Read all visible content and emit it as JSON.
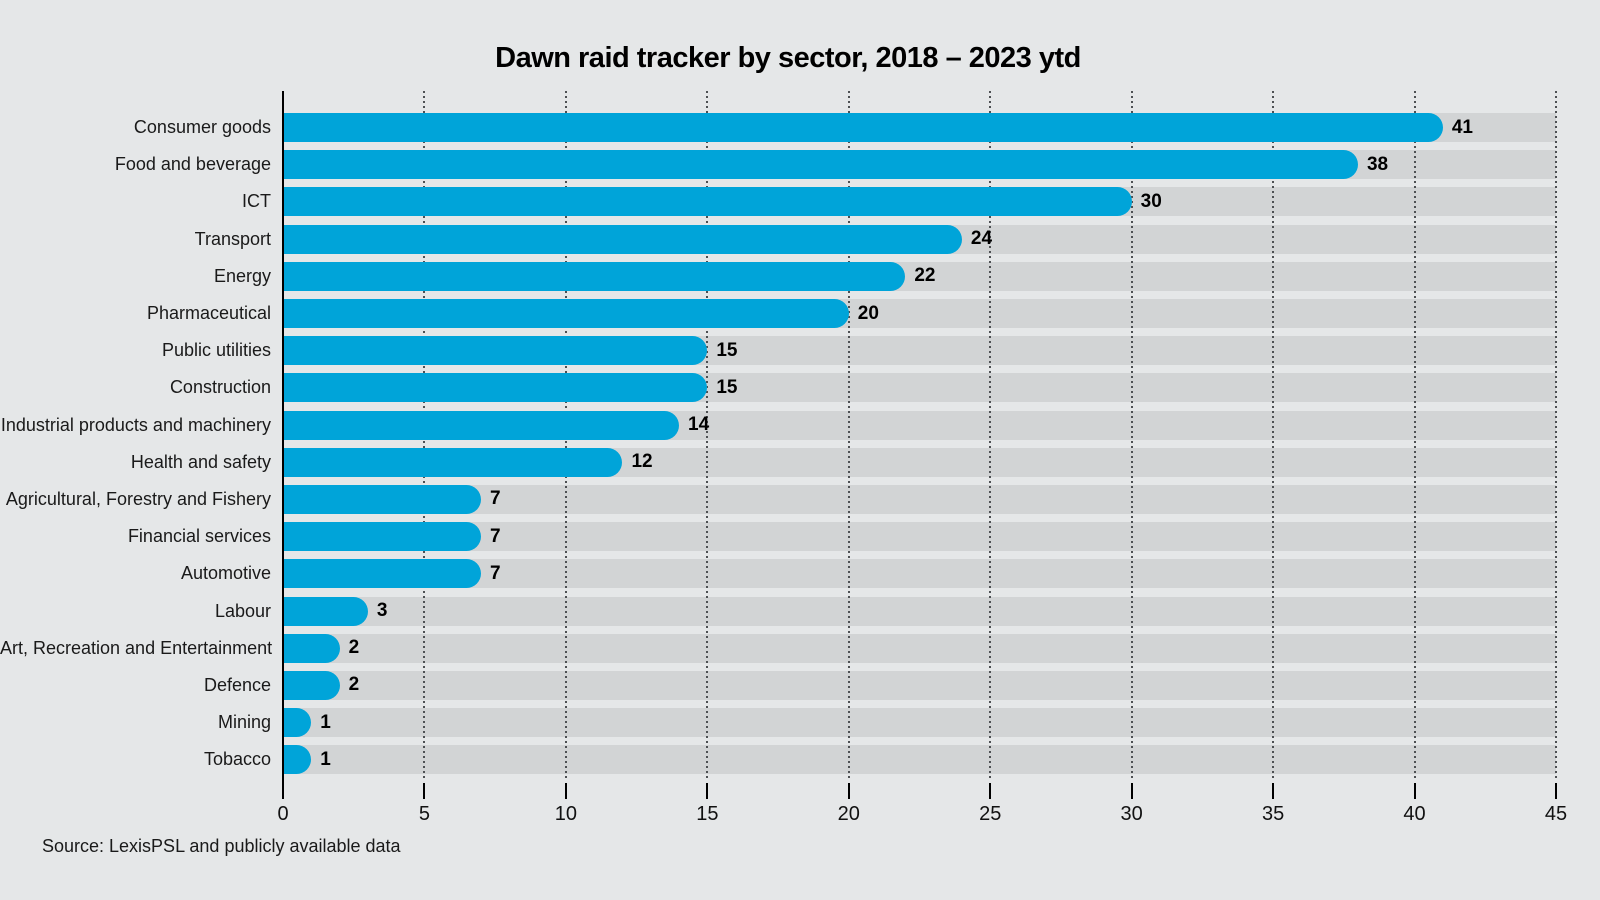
{
  "source": "Source: LexisPSL and publicly available data",
  "colors": {
    "bar": "#00a4d9",
    "track": "#d2d4d5",
    "background": "#e5e7e8",
    "gridline": "#4d5053",
    "axis": "#000000",
    "text": "#1a1a1a"
  },
  "chart_data": {
    "type": "bar",
    "orientation": "horizontal",
    "title": "Dawn raid tracker by sector, 2018 – 2023 ytd",
    "categories": [
      "Consumer goods",
      "Food and beverage",
      "ICT",
      "Transport",
      "Energy",
      "Pharmaceutical",
      "Public utilities",
      "Construction",
      "Industrial products and machinery",
      "Health and safety",
      "Agricultural, Forestry and Fishery",
      "Financial services",
      "Automotive",
      "Labour",
      "Art, Recreation and Entertainment",
      "Defence",
      "Mining",
      "Tobacco"
    ],
    "values": [
      41,
      38,
      30,
      24,
      22,
      20,
      15,
      15,
      14,
      12,
      7,
      7,
      7,
      3,
      2,
      2,
      1,
      1
    ],
    "xlabel": "",
    "ylabel": "",
    "xlim": [
      0,
      45
    ],
    "x_ticks": [
      0,
      5,
      10,
      15,
      20,
      25,
      30,
      35,
      40,
      45
    ],
    "grid": "dotted-vertical",
    "value_labels": true,
    "legend": "none"
  }
}
